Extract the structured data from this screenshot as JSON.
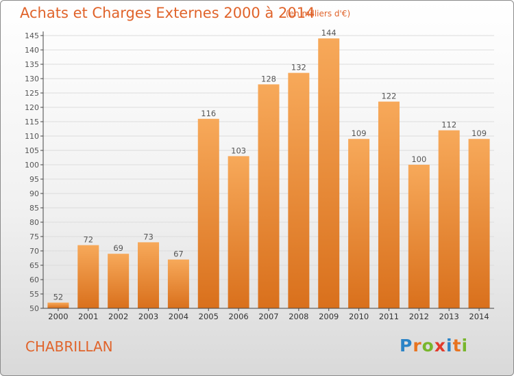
{
  "header": {
    "title": "Achats et Charges Externes 2000 à 2014",
    "unit": "(en milliers d'€)"
  },
  "footer": {
    "commune": "CHABRILLAN",
    "logo_letters": [
      "P",
      "r",
      "o",
      "x",
      "i",
      "t",
      "i"
    ],
    "logo_colors": [
      "#2b83c6",
      "#e8731f",
      "#78b62c",
      "#e23a2b",
      "#2b83c6",
      "#e8731f",
      "#78b62c"
    ]
  },
  "chart_data": {
    "type": "bar",
    "title": "Achats et Charges Externes 2000 à 2014",
    "categories": [
      "2000",
      "2001",
      "2002",
      "2003",
      "2004",
      "2005",
      "2006",
      "2007",
      "2008",
      "2009",
      "2010",
      "2011",
      "2012",
      "2013",
      "2014"
    ],
    "values": [
      52,
      72,
      69,
      73,
      67,
      116,
      103,
      128,
      132,
      144,
      109,
      122,
      100,
      112,
      109
    ],
    "ylim": [
      50,
      145
    ],
    "yticks": [
      50,
      55,
      60,
      65,
      70,
      75,
      80,
      85,
      90,
      95,
      100,
      105,
      110,
      115,
      120,
      125,
      130,
      135,
      140,
      145
    ],
    "grid": true,
    "bar_color_top": "#f7a95a",
    "bar_color_bottom": "#d9701c",
    "text_color": "#555555"
  }
}
